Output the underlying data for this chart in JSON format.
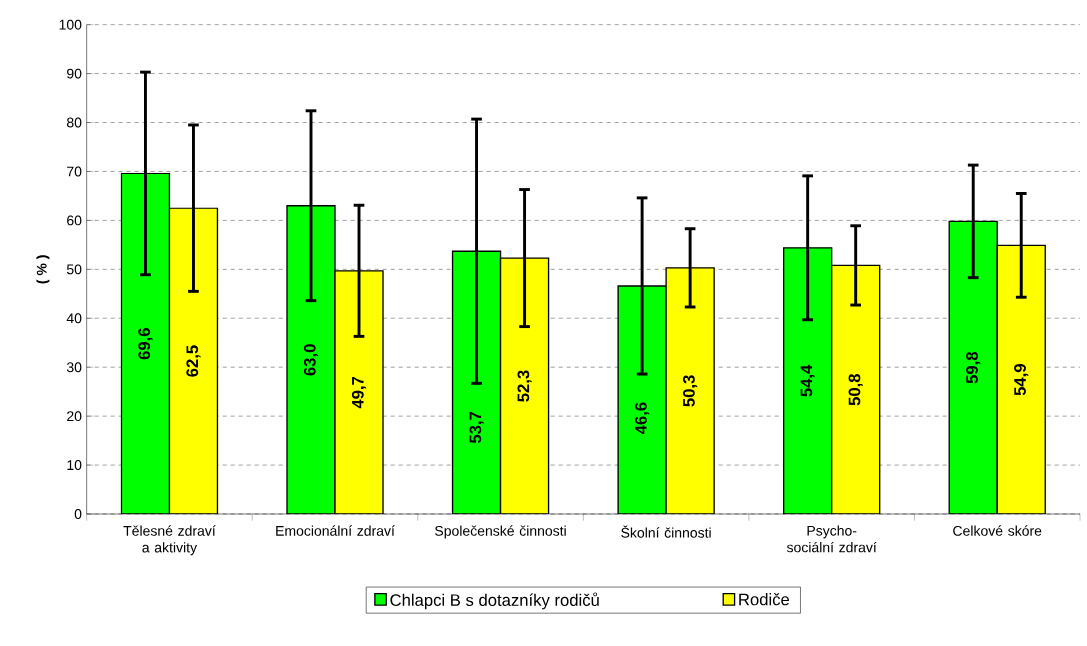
{
  "chart_data": {
    "type": "bar",
    "ylabel": "( % )",
    "categories": [
      "Tělesné zdraví a aktivity",
      "Emocionální zdraví",
      "Společenské činnosti",
      "Školní činnosti",
      "Psycho-sociální zdraví",
      "Celkové skóre"
    ],
    "series": [
      {
        "name": "Chlapci B s dotazníky rodičů",
        "color": "#00ff00",
        "values": [
          69.6,
          63.0,
          53.7,
          46.6,
          54.4,
          59.8
        ],
        "value_labels": [
          "69,6",
          "63,0",
          "53,7",
          "46,6",
          "54,4",
          "59,8"
        ],
        "errors": [
          20.7,
          19.4,
          27.0,
          18.0,
          14.7,
          11.5
        ]
      },
      {
        "name": "Rodiče",
        "color": "#ffff00",
        "values": [
          62.5,
          49.7,
          52.3,
          50.3,
          50.8,
          54.9
        ],
        "value_labels": [
          "62,5",
          "49,7",
          "52,3",
          "50,3",
          "50,8",
          "54,9"
        ],
        "errors": [
          17.0,
          13.4,
          14.0,
          8.0,
          8.1,
          10.6
        ]
      }
    ],
    "ylim": [
      0,
      100
    ],
    "yticks": [
      0,
      10,
      20,
      30,
      40,
      50,
      60,
      70,
      80,
      90,
      100
    ],
    "grid": "y",
    "legend": "bottom"
  }
}
